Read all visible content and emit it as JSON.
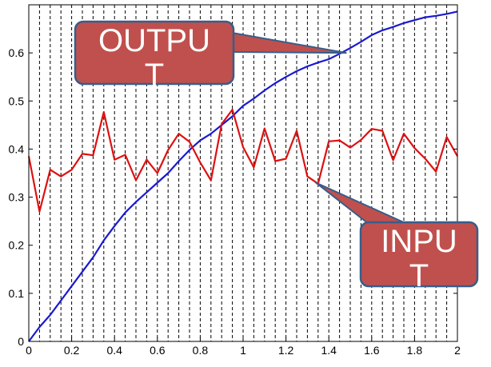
{
  "chart_data": {
    "type": "line",
    "xlim": [
      0,
      2
    ],
    "ylim": [
      0,
      0.7
    ],
    "x_ticks": [
      "0",
      "0.2",
      "0.4",
      "0.6",
      "0.8",
      "1",
      "1.2",
      "1.4",
      "1.6",
      "1.8",
      "2"
    ],
    "y_ticks": [
      "0",
      "0.1",
      "0.2",
      "0.3",
      "0.4",
      "0.5",
      "0.6"
    ],
    "grid": "vertical dashed lines every 0.05",
    "series": [
      {
        "name": "OUTPUT",
        "color": "#1a1ad0",
        "x": [
          0,
          0.05,
          0.1,
          0.15,
          0.2,
          0.25,
          0.3,
          0.35,
          0.4,
          0.45,
          0.5,
          0.55,
          0.6,
          0.65,
          0.7,
          0.75,
          0.8,
          0.85,
          0.9,
          0.95,
          1.0,
          1.05,
          1.1,
          1.15,
          1.2,
          1.25,
          1.3,
          1.35,
          1.4,
          1.45,
          1.5,
          1.55,
          1.6,
          1.65,
          1.7,
          1.75,
          1.8,
          1.85,
          1.9,
          1.95,
          2.0
        ],
        "y": [
          0,
          0.03,
          0.055,
          0.085,
          0.115,
          0.145,
          0.175,
          0.21,
          0.24,
          0.268,
          0.29,
          0.31,
          0.33,
          0.35,
          0.375,
          0.398,
          0.418,
          0.432,
          0.45,
          0.468,
          0.49,
          0.505,
          0.522,
          0.537,
          0.55,
          0.562,
          0.572,
          0.58,
          0.587,
          0.598,
          0.61,
          0.623,
          0.637,
          0.647,
          0.654,
          0.662,
          0.668,
          0.674,
          0.677,
          0.681,
          0.686
        ]
      },
      {
        "name": "INPUT",
        "color": "#dd1111",
        "x": [
          0,
          0.05,
          0.1,
          0.15,
          0.2,
          0.25,
          0.3,
          0.35,
          0.4,
          0.45,
          0.5,
          0.55,
          0.6,
          0.65,
          0.7,
          0.75,
          0.8,
          0.85,
          0.9,
          0.95,
          1.0,
          1.05,
          1.1,
          1.15,
          1.2,
          1.25,
          1.3,
          1.35,
          1.4,
          1.45,
          1.5,
          1.55,
          1.6,
          1.65,
          1.7,
          1.75,
          1.8,
          1.85,
          1.9,
          1.95,
          2.0
        ],
        "y": [
          0.385,
          0.27,
          0.357,
          0.343,
          0.357,
          0.39,
          0.387,
          0.477,
          0.378,
          0.388,
          0.335,
          0.378,
          0.35,
          0.398,
          0.432,
          0.415,
          0.372,
          0.335,
          0.452,
          0.482,
          0.404,
          0.362,
          0.443,
          0.375,
          0.38,
          0.438,
          0.343,
          0.328,
          0.416,
          0.418,
          0.403,
          0.419,
          0.442,
          0.438,
          0.377,
          0.432,
          0.402,
          0.38,
          0.353,
          0.425,
          0.385
        ]
      }
    ],
    "annotations": [
      {
        "text": "OUTPU T",
        "line1": "OUTPU",
        "line2": "T",
        "target_x": 1.48,
        "target_y": 0.6
      },
      {
        "text": "INPU T",
        "line1": "INPU",
        "line2": "T",
        "target_x": 1.34,
        "target_y": 0.33
      }
    ]
  }
}
